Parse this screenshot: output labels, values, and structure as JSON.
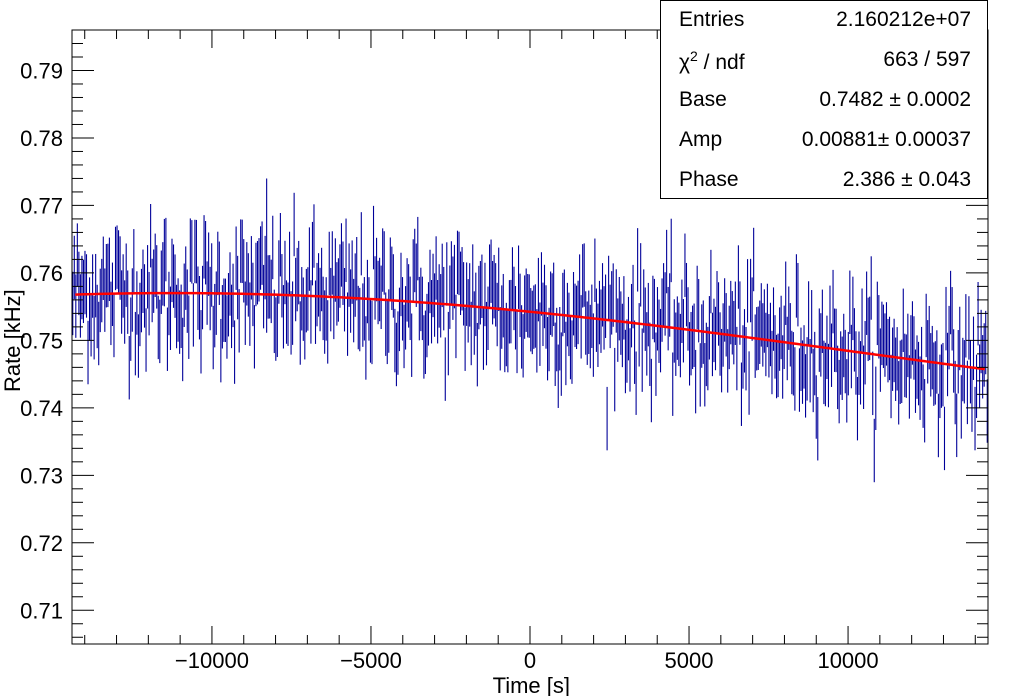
{
  "chart_data": {
    "type": "scatter",
    "xlabel": "Time [s]",
    "ylabel": "Rate [kHz]",
    "xlim": [
      -14400,
      14400
    ],
    "ylim": [
      0.705,
      0.796
    ],
    "xticks": [
      -10000,
      -5000,
      0,
      5000,
      10000
    ],
    "xtick_labels": [
      "−10000",
      "−5000",
      "0",
      "5000",
      "10000"
    ],
    "yticks": [
      0.71,
      0.72,
      0.73,
      0.74,
      0.75,
      0.76,
      0.77,
      0.78,
      0.79
    ],
    "ytick_labels": [
      "0.71",
      "0.72",
      "0.73",
      "0.74",
      "0.75",
      "0.76",
      "0.77",
      "0.78",
      "0.79"
    ],
    "series": [
      {
        "name": "data",
        "style": "error bars",
        "color": "#000099",
        "n_bins": 600,
        "x_start": -14376,
        "x_step": 48,
        "y_error": 0.0047,
        "trend_note": "per-bin rates scatter about the fitted curve",
        "visible_spikes": [
          {
            "x": -8300,
            "y_high": 0.774
          },
          {
            "x": -5300,
            "y_high": 0.769
          },
          {
            "x": -11500,
            "y_high": 0.768
          },
          {
            "x": 12000,
            "y_low": 0.728
          }
        ]
      },
      {
        "name": "fit",
        "style": "line",
        "color": "#ff0000",
        "formula": "Base + Amp*sin(2*pi*t/86400 + Phase)",
        "x_range": [
          -14300,
          14300
        ],
        "params": {
          "Base": 0.7482,
          "Amp": 0.00881,
          "Phase": 2.386
        }
      }
    ],
    "stats": [
      {
        "key": "Entries",
        "sup": "",
        "key_rest": "",
        "value": "2.160212e+07"
      },
      {
        "key": "χ",
        "sup": "2",
        "key_rest": " / ndf",
        "value": "663 / 597"
      },
      {
        "key": "Base",
        "sup": "",
        "key_rest": "",
        "value": "0.7482 ± 0.0002"
      },
      {
        "key": "Amp",
        "sup": "",
        "key_rest": "",
        "value": "0.00881± 0.00037"
      },
      {
        "key": "Phase",
        "sup": "",
        "key_rest": "",
        "value": "2.386 ± 0.043"
      }
    ]
  }
}
